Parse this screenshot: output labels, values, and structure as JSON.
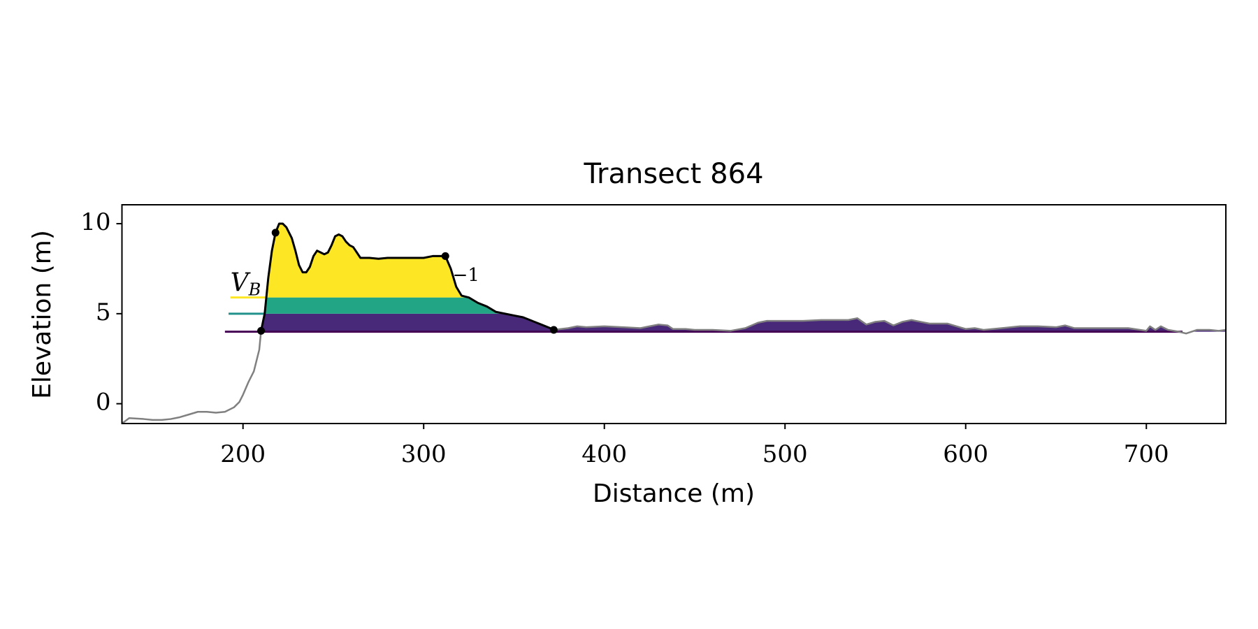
{
  "chart_data": {
    "type": "profile",
    "title": "Transect 864",
    "xlabel": "Distance (m)",
    "ylabel": "Elevation (m)",
    "xlim": [
      133,
      744
    ],
    "ylim": [
      -1.1,
      11.05
    ],
    "xticks": [
      200,
      300,
      400,
      500,
      600,
      700
    ],
    "yticks": [
      0,
      5,
      10
    ],
    "series": [
      {
        "name": "profile",
        "color": "#808080",
        "x": [
          133,
          137,
          145,
          150,
          155,
          160,
          165,
          170,
          175,
          180,
          185,
          190,
          195,
          198,
          200,
          203,
          206,
          209,
          210,
          212,
          214,
          216,
          218,
          220,
          222,
          224,
          227,
          229,
          231,
          233,
          235,
          237,
          239,
          241,
          243,
          245,
          247,
          249,
          251,
          253,
          255,
          257,
          259,
          261,
          263,
          265,
          270,
          275,
          280,
          290,
          300,
          305,
          312,
          315,
          318,
          321,
          325,
          330,
          335,
          340,
          345,
          350,
          355,
          360,
          365,
          370,
          372,
          380,
          385,
          390,
          400,
          410,
          420,
          425,
          430,
          435,
          438,
          445,
          450,
          460,
          470,
          478,
          485,
          490,
          500,
          510,
          520,
          535,
          540,
          545,
          550,
          555,
          560,
          565,
          570,
          575,
          580,
          590,
          595,
          600,
          605,
          610,
          620,
          630,
          640,
          650,
          655,
          660,
          670,
          680,
          690,
          700,
          702,
          705,
          708,
          712,
          718,
          722,
          728,
          735,
          740,
          744
        ],
        "values": [
          -1.1,
          -0.8,
          -0.85,
          -0.9,
          -0.9,
          -0.85,
          -0.75,
          -0.6,
          -0.45,
          -0.45,
          -0.5,
          -0.45,
          -0.2,
          0.1,
          0.5,
          1.2,
          1.8,
          3.0,
          4.05,
          5.0,
          7.0,
          8.5,
          9.5,
          10.0,
          10.0,
          9.8,
          9.2,
          8.5,
          7.7,
          7.3,
          7.3,
          7.6,
          8.2,
          8.5,
          8.4,
          8.3,
          8.4,
          8.8,
          9.3,
          9.4,
          9.3,
          9.0,
          8.8,
          8.7,
          8.4,
          8.1,
          8.1,
          8.05,
          8.1,
          8.1,
          8.1,
          8.2,
          8.2,
          7.5,
          6.5,
          6.0,
          5.9,
          5.6,
          5.4,
          5.1,
          5.0,
          4.9,
          4.8,
          4.6,
          4.4,
          4.2,
          4.1,
          4.2,
          4.3,
          4.25,
          4.3,
          4.25,
          4.2,
          4.3,
          4.4,
          4.35,
          4.15,
          4.15,
          4.1,
          4.1,
          4.05,
          4.2,
          4.5,
          4.6,
          4.6,
          4.6,
          4.65,
          4.65,
          4.75,
          4.4,
          4.55,
          4.6,
          4.35,
          4.55,
          4.65,
          4.55,
          4.45,
          4.45,
          4.3,
          4.15,
          4.2,
          4.1,
          4.2,
          4.3,
          4.3,
          4.25,
          4.35,
          4.2,
          4.2,
          4.2,
          4.2,
          4.05,
          4.3,
          4.1,
          4.3,
          4.1,
          4.0,
          3.9,
          4.1,
          4.1,
          4.05,
          4.1
        ]
      },
      {
        "name": "dune",
        "color": "#000000",
        "x": [
          210,
          212,
          214,
          216,
          218,
          220,
          222,
          224,
          227,
          229,
          231,
          233,
          235,
          237,
          239,
          241,
          243,
          245,
          247,
          249,
          251,
          253,
          255,
          257,
          259,
          261,
          263,
          265,
          270,
          275,
          280,
          290,
          300,
          305,
          312,
          315,
          318,
          321,
          325,
          330,
          335,
          340,
          345,
          350,
          355,
          360,
          365,
          370,
          372
        ],
        "values": [
          4.05,
          5.0,
          7.0,
          8.5,
          9.5,
          10.0,
          10.0,
          9.8,
          9.2,
          8.5,
          7.7,
          7.3,
          7.3,
          7.6,
          8.2,
          8.5,
          8.4,
          8.3,
          8.4,
          8.8,
          9.3,
          9.4,
          9.3,
          9.0,
          8.8,
          8.7,
          8.4,
          8.1,
          8.1,
          8.05,
          8.1,
          8.1,
          8.1,
          8.2,
          8.2,
          7.5,
          6.5,
          6.0,
          5.9,
          5.6,
          5.4,
          5.1,
          5.0,
          4.9,
          4.8,
          4.6,
          4.4,
          4.2,
          4.1
        ]
      }
    ],
    "levels": [
      {
        "value": 4.0,
        "line_color": "#440154",
        "fill_color": "#482878",
        "x_start": 190,
        "x_end": 720
      },
      {
        "value": 5.0,
        "line_color": "#21918c",
        "fill_color": "#21a585",
        "x_start": 192,
        "x_end": 212
      },
      {
        "value": 5.9,
        "line_color": "#fde725",
        "fill_color": "#fde725",
        "x_start": 193,
        "x_end": 213
      }
    ],
    "points": {
      "x": [
        210,
        218,
        312,
        372
      ],
      "y": [
        4.05,
        9.5,
        8.2,
        4.1
      ],
      "color": "#000000"
    },
    "annotations": [
      {
        "text": "V",
        "subscript": "B",
        "x": 193,
        "y": 6.6
      },
      {
        "text": "−1",
        "x": 316,
        "y": 7.1
      }
    ]
  }
}
